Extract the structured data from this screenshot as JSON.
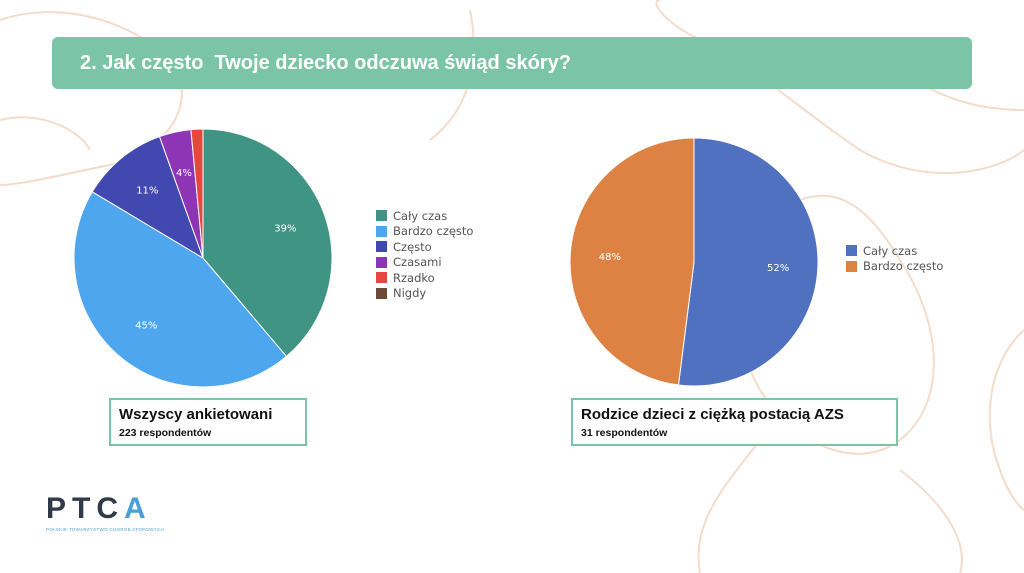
{
  "header": {
    "title": "2. Jak często  Twoje dziecko odczuwa świąd skóry?"
  },
  "chart_data": [
    {
      "type": "pie",
      "categories": [
        "Cały czas",
        "Bardzo często",
        "Często",
        "Czasami",
        "Rzadko",
        "Nigdy"
      ],
      "values": [
        39,
        45,
        11,
        4,
        1.5,
        0
      ],
      "data_labels": [
        "39%",
        "45%",
        "11%",
        "4%",
        "",
        ""
      ],
      "colors": [
        "#3f9483",
        "#4ea7ee",
        "#4148b0",
        "#8e35b6",
        "#e5473f",
        "#6b4a3a"
      ],
      "legend_position": "right",
      "caption": {
        "main": "Wszyscy ankietowani",
        "sub": "223 respondentów"
      }
    },
    {
      "type": "pie",
      "categories": [
        "Cały czas",
        "Bardzo często"
      ],
      "values": [
        52,
        48
      ],
      "data_labels": [
        "52%",
        "48%"
      ],
      "colors": [
        "#5070c0",
        "#dd8242"
      ],
      "legend_position": "right",
      "caption": {
        "main": "Rodzice dzieci z ciężką postacią AZS",
        "sub": "31 respondentów"
      }
    }
  ],
  "logo": {
    "text_main": "PTC",
    "text_accent": "A",
    "tagline": "POLSKIE TOWARZYSTWO CHORÓB ATOPOWYCH"
  },
  "colors": {
    "accent": "#7cc4a8",
    "decoration": "#f3dccb"
  }
}
